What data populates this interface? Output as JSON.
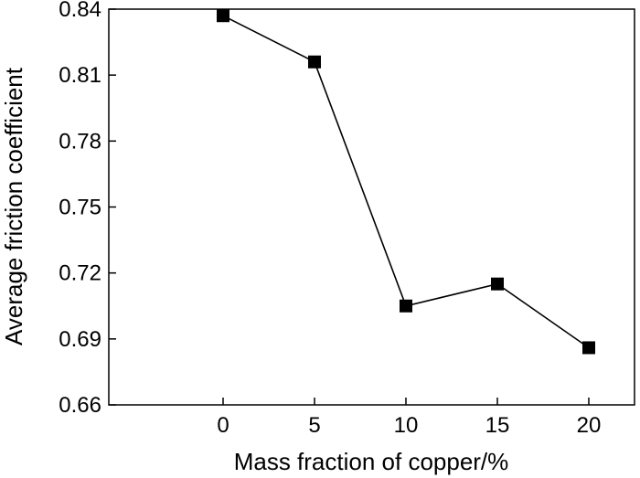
{
  "chart_data": {
    "type": "line",
    "title": "",
    "xlabel": "Mass fraction of copper/%",
    "ylabel": "Average friction coefficient",
    "x": [
      0,
      5,
      10,
      15,
      20
    ],
    "xticks": [
      "0",
      "5",
      "10",
      "15",
      "20"
    ],
    "xlim": [
      -6.25,
      22.5
    ],
    "ylim": [
      0.66,
      0.84
    ],
    "yticks": [
      "0.66",
      "0.69",
      "0.72",
      "0.75",
      "0.78",
      "0.81",
      "0.84"
    ],
    "series": [
      {
        "values": [
          0.837,
          0.816,
          0.705,
          0.715,
          0.686
        ],
        "marker": "square",
        "color": "#000000"
      }
    ],
    "grid": false,
    "legend": "none"
  }
}
